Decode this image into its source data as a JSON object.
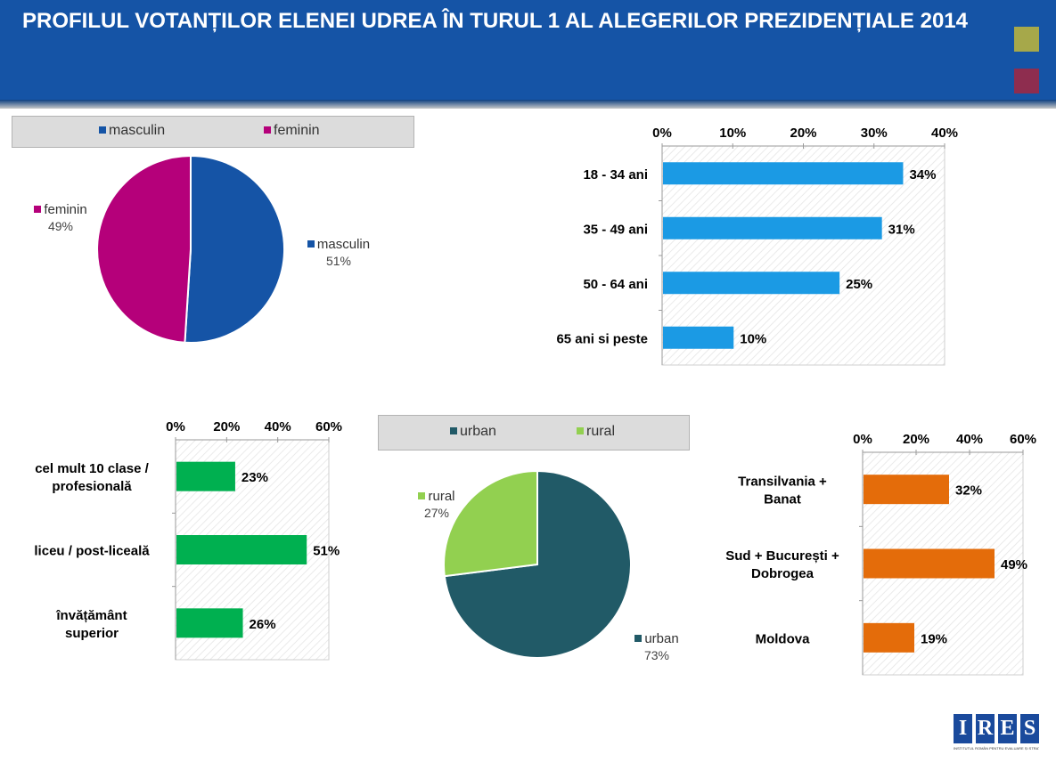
{
  "header": {
    "title": "PROFILUL VOTANȚILOR ELENEI UDREA ÎN TURUL 1 AL ALEGERILOR PREZIDENȚIALE 2014",
    "decor_colors": [
      "#a6a84a",
      "#8e2d4f"
    ]
  },
  "chart_data": [
    {
      "id": "gender",
      "type": "pie",
      "legend": [
        "masculin",
        "feminin"
      ],
      "slices": [
        {
          "name": "masculin",
          "value": 51,
          "label": "51%",
          "color": "#1554a6"
        },
        {
          "name": "feminin",
          "value": 49,
          "label": "49%",
          "color": "#b5007a"
        }
      ]
    },
    {
      "id": "age",
      "type": "bar",
      "orientation": "horizontal",
      "categories": [
        "18 - 34 ani",
        "35 - 49 ani",
        "50 - 64 ani",
        "65 ani si peste"
      ],
      "values": [
        34,
        31,
        25,
        10
      ],
      "data_labels": [
        "34%",
        "31%",
        "25%",
        "10%"
      ],
      "ticks": [
        "0%",
        "10%",
        "20%",
        "30%",
        "40%"
      ],
      "xlim": [
        0,
        40
      ],
      "color": "#1b9ae4"
    },
    {
      "id": "education",
      "type": "bar",
      "orientation": "horizontal",
      "categories": [
        [
          "cel mult 10 clase /",
          "profesională"
        ],
        [
          "liceu / post-liceală"
        ],
        [
          "învățământ",
          "superior"
        ]
      ],
      "values": [
        23,
        51,
        26
      ],
      "data_labels": [
        "23%",
        "51%",
        "26%"
      ],
      "ticks": [
        "0%",
        "20%",
        "40%",
        "60%"
      ],
      "xlim": [
        0,
        60
      ],
      "color": "#00b050"
    },
    {
      "id": "residence",
      "type": "pie",
      "legend": [
        "urban",
        "rural"
      ],
      "slices": [
        {
          "name": "urban",
          "value": 73,
          "label": "73%",
          "color": "#215a67"
        },
        {
          "name": "rural",
          "value": 27,
          "label": "27%",
          "color": "#92d050"
        }
      ]
    },
    {
      "id": "region",
      "type": "bar",
      "orientation": "horizontal",
      "categories": [
        [
          "Transilvania +",
          "Banat"
        ],
        [
          "Sud + București +",
          "Dobrogea"
        ],
        [
          "Moldova"
        ]
      ],
      "values": [
        32,
        49,
        19
      ],
      "data_labels": [
        "32%",
        "49%",
        "19%"
      ],
      "ticks": [
        "0%",
        "20%",
        "40%",
        "60%"
      ],
      "xlim": [
        0,
        60
      ],
      "color": "#e46c0a"
    }
  ],
  "logo": {
    "letters": [
      "I",
      "R",
      "E",
      "S"
    ],
    "subtitle": "INSTITUTUL ROMÂN PENTRU EVALUARE ȘI STRATEGIE"
  }
}
